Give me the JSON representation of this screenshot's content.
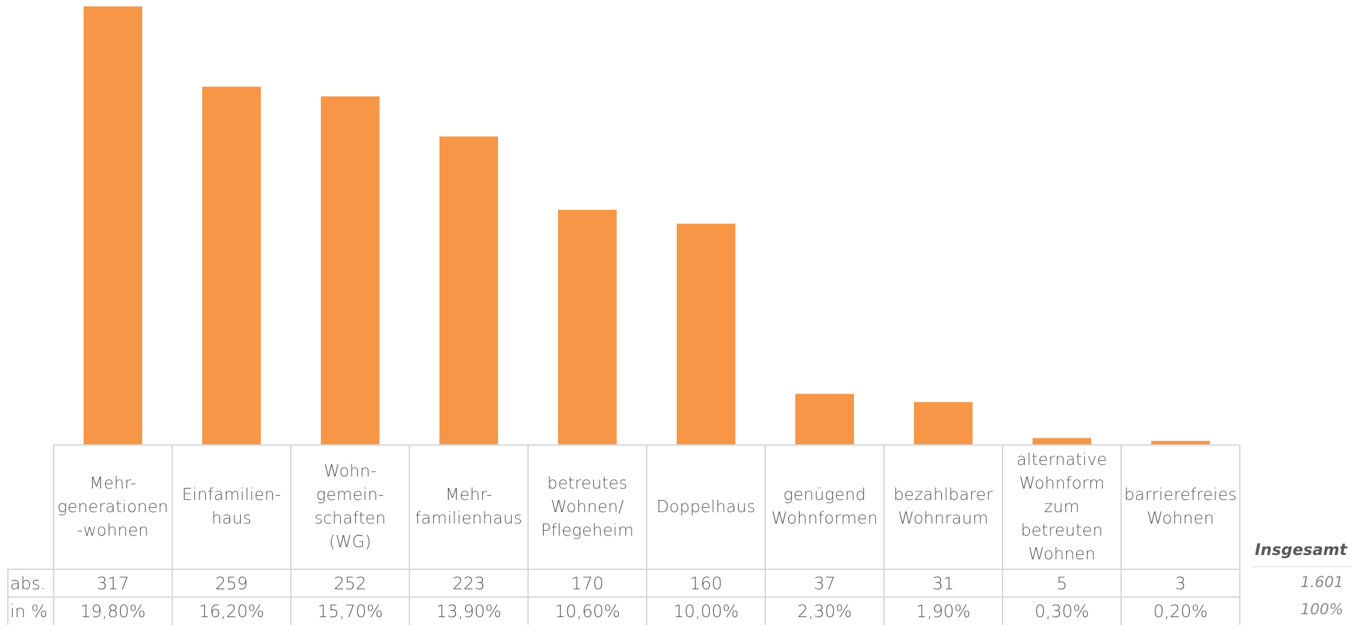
{
  "chart_data": {
    "type": "bar",
    "categories": [
      "Mehr-\ngenerationen\n-wohnen",
      "Einfamilien-\nhaus",
      "Wohn-\ngemein-\nschaften\n(WG)",
      "Mehr-\nfamilienhaus",
      "betreutes\nWohnen/\nPflegeheim",
      "Doppelhaus",
      "genügend\nWohnformen",
      "bezahlbarer\nWohnraum",
      "alternative\nWohnform\nzum\nbetreuten\nWohnen",
      "barrierefreies\nWohnen"
    ],
    "values": [
      317,
      259,
      252,
      223,
      170,
      160,
      37,
      31,
      5,
      3
    ],
    "ylim": [
      0,
      317
    ],
    "bar_color": "#F79646",
    "grid": false,
    "legend": "none"
  },
  "table": {
    "row_labels": [
      "abs.",
      "in %"
    ],
    "abs": [
      "317",
      "259",
      "252",
      "223",
      "170",
      "160",
      "37",
      "31",
      "5",
      "3"
    ],
    "pct": [
      "19,80%",
      "16,20%",
      "15,70%",
      "13,90%",
      "10,60%",
      "10,00%",
      "2,30%",
      "1,90%",
      "0,30%",
      "0,20%"
    ]
  },
  "totals": {
    "label": "Insgesamt",
    "abs": "1.601",
    "pct": "100%"
  },
  "colors": {
    "grid_line": "#D9D9D9",
    "text": "#595959"
  }
}
